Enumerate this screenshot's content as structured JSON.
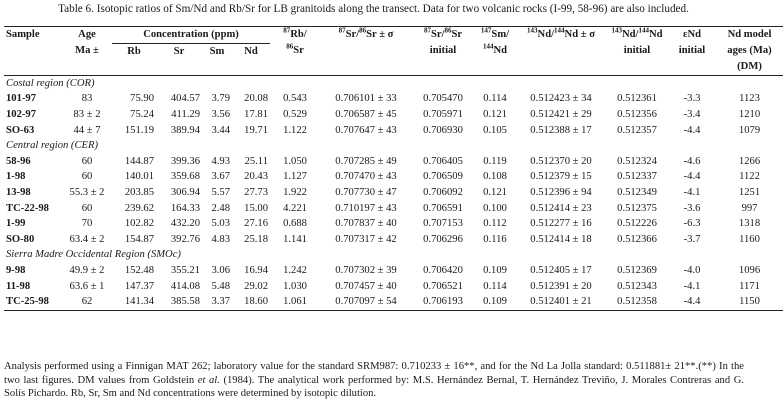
{
  "caption": "Table 6. Isotopic ratios of Sm/Nd and Rb/Sr for LB granitoids along the transect. Data for two volcanic rocks (I-99, 58-96) are also included.",
  "headers": {
    "sample": "Sample",
    "age": "Age",
    "age_unit": "Ma ±",
    "concentration": "Concentration (ppm)",
    "rb": "Rb",
    "sr": "Sr",
    "sm": "Sm",
    "nd": "Nd",
    "rbsr_sup1": "87",
    "rbsr_main": "Rb/",
    "rbsr_sup2": "86",
    "rbsr_tail": "Sr",
    "srsr_sup1": "87",
    "srsr_mid": "Sr/",
    "srsr_sup2": "86",
    "srsr_tail": "Sr ± σ",
    "srsri_sup1": "87",
    "srsri_mid": "Sr/",
    "srsri_sup2": "86",
    "srsri_tail": "Sr",
    "srsri_line2": "initial",
    "smnd_sup1": "147",
    "smnd_mid": "Sm/",
    "smnd_sup2": "144",
    "smnd_tail": "Nd",
    "ndnd_sup1": "143",
    "ndnd_mid": "Nd/",
    "ndnd_sup2": "144",
    "ndnd_tail": "Nd ± σ",
    "ndndi_sup1": "143",
    "ndndi_mid": "Nd/",
    "ndndi_sup2": "144",
    "ndndi_tail": "Nd",
    "ndndi_line2": "initial",
    "end_line1": "εNd",
    "end_line2": "initial",
    "model_line1": "Nd model",
    "model_line2": "ages (Ma)",
    "model_line3": "(DM)"
  },
  "groups": [
    {
      "region": "Costal region (COR)",
      "rows": [
        [
          "101-97",
          "83",
          "75.90",
          "404.57",
          "3.79",
          "20.08",
          "0.543",
          "0.706101 ± 33",
          "0.705470",
          "0.114",
          "0.512423 ± 34",
          "0.512361",
          "-3.3",
          "1123"
        ],
        [
          "102-97",
          "83 ± 2",
          "75.24",
          "411.29",
          "3.56",
          "17.81",
          "0.529",
          "0.706587 ± 45",
          "0.705971",
          "0.121",
          "0.512421 ± 29",
          "0.512356",
          "-3.4",
          "1210"
        ],
        [
          "SO-63",
          "44 ± 7",
          "151.19",
          "389.94",
          "3.44",
          "19.71",
          "1.122",
          "0.707647 ± 43",
          "0.706930",
          "0.105",
          "0.512388 ± 17",
          "0.512357",
          "-4.4",
          "1079"
        ]
      ]
    },
    {
      "region": "Central region (CER)",
      "rows": [
        [
          "58-96",
          "60",
          "144.87",
          "399.36",
          "4.93",
          "25.11",
          "1.050",
          "0.707285 ± 49",
          "0.706405",
          "0.119",
          "0.512370 ± 20",
          "0.512324",
          "-4.6",
          "1266"
        ],
        [
          "1-98",
          "60",
          "140.01",
          "359.68",
          "3.67",
          "20.43",
          "1.127",
          "0.707470 ± 43",
          "0.706509",
          "0.108",
          "0.512379 ± 15",
          "0.512337",
          "-4.4",
          "1122"
        ],
        [
          "13-98",
          "55.3 ± 2",
          "203.85",
          "306.94",
          "5.57",
          "27.73",
          "1.922",
          "0.707730 ± 47",
          "0.706092",
          "0.121",
          "0.512396 ± 94",
          "0.512349",
          "-4.1",
          "1251"
        ],
        [
          "TC-22-98",
          "60",
          "239.62",
          "164.33",
          "2.48",
          "15.00",
          "4.221",
          "0.710197 ± 43",
          "0.706591",
          "0.100",
          "0.512414 ± 23",
          "0.512375",
          "-3.6",
          "997"
        ],
        [
          "1-99",
          "70",
          "102.82",
          "432.20",
          "5.03",
          "27.16",
          "0.688",
          "0.707837 ± 40",
          "0.707153",
          "0.112",
          "0.512277 ± 16",
          "0.512226",
          "-6.3",
          "1318"
        ],
        [
          "SO-80",
          "63.4 ± 2",
          "154.87",
          "392.76",
          "4.83",
          "25.18",
          "1.141",
          "0.707317 ± 42",
          "0.706296",
          "0.116",
          "0.512414 ± 18",
          "0.512366",
          "-3.7",
          "1160"
        ]
      ]
    },
    {
      "region": "Sierra Madre Occidental Region (SMOc)",
      "rows": [
        [
          "9-98",
          "49.9 ± 2",
          "152.48",
          "355.21",
          "3.06",
          "16.94",
          "1.242",
          "0.707302 ± 39",
          "0.706420",
          "0.109",
          "0.512405 ± 17",
          "0.512369",
          "-4.0",
          "1096"
        ],
        [
          "11-98",
          "63.6 ± 1",
          "147.37",
          "414.08",
          "5.48",
          "29.02",
          "1.030",
          "0.707457 ± 40",
          "0.706521",
          "0.114",
          "0.512391 ± 20",
          "0.512343",
          "-4.1",
          "1171"
        ],
        [
          "TC-25-98",
          "62",
          "141.34",
          "385.58",
          "3.37",
          "18.60",
          "1.061",
          "0.707097 ± 54",
          "0.706193",
          "0.109",
          "0.512401 ± 21",
          "0.512358",
          "-4.4",
          "1150"
        ]
      ]
    }
  ],
  "footnote": {
    "part1": "Analysis performed using a Finnigan MAT 262; laboratory value for the standard SRM987: 0.710233 ± 16**, and for the Nd La Jolla standard: 0.511881± 21**.(**) In the two last figures. DM values from Goldstein ",
    "etal": "et al.",
    "part2": " (1984). The analytical work performed by: M.S. Hernández Bernal, T. Hernández Treviño, J. Morales Contreras and G. Solís Pichardo. Rb, Sr, Sm and Nd concentrations were determined by isotopic dilution."
  }
}
